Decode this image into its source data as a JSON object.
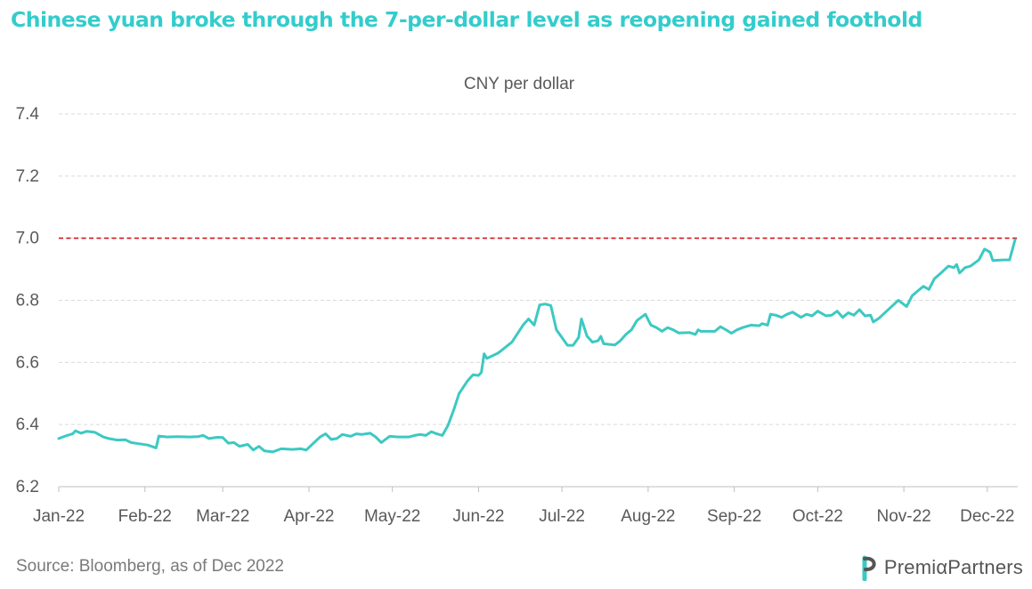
{
  "title": "Chinese yuan broke through the 7-per-dollar level as reopening gained foothold",
  "source": "Source: Bloomberg, as of Dec 2022",
  "brand": {
    "name": "PremiαPartners",
    "icon": "premia-logo-icon"
  },
  "colors": {
    "title": "#33cccc",
    "line": "#3cc9c2",
    "reference": "#d7191c",
    "grid": "#d9d9d9",
    "text": "#595959",
    "source": "#7a7a7a"
  },
  "chart_data": {
    "type": "line",
    "title": "CNY per dollar",
    "xlabel": "",
    "ylabel": "",
    "x_domain": [
      "2022-01-01",
      "2022-12-11"
    ],
    "ylim": [
      6.2,
      7.4
    ],
    "y_ticks": [
      6.2,
      6.4,
      6.6,
      6.8,
      7.0,
      7.2,
      7.4
    ],
    "y_tick_labels": [
      "6.2",
      "6.4",
      "6.6",
      "6.8",
      "7.0",
      "7.2",
      "7.4"
    ],
    "x_ticks": [
      {
        "date": "2022-01-01",
        "label": "Jan-22"
      },
      {
        "date": "2022-02-01",
        "label": "Feb-22"
      },
      {
        "date": "2022-03-01",
        "label": "Mar-22"
      },
      {
        "date": "2022-04-01",
        "label": "Apr-22"
      },
      {
        "date": "2022-05-01",
        "label": "May-22"
      },
      {
        "date": "2022-06-01",
        "label": "Jun-22"
      },
      {
        "date": "2022-07-01",
        "label": "Jul-22"
      },
      {
        "date": "2022-08-01",
        "label": "Aug-22"
      },
      {
        "date": "2022-09-01",
        "label": "Sep-22"
      },
      {
        "date": "2022-10-01",
        "label": "Oct-22"
      },
      {
        "date": "2022-11-01",
        "label": "Nov-22"
      },
      {
        "date": "2022-12-01",
        "label": "Dec-22"
      }
    ],
    "grid": "horizontal-dashed",
    "reference_line": {
      "y": 7.0,
      "style": "dashed",
      "color": "#d7191c"
    },
    "series": [
      {
        "name": "",
        "color": "#3cc9c2",
        "points": [
          [
            "2022-01-01",
            6.355
          ],
          [
            "2022-01-04",
            6.365
          ],
          [
            "2022-01-06",
            6.37
          ],
          [
            "2022-01-07",
            6.38
          ],
          [
            "2022-01-09",
            6.372
          ],
          [
            "2022-01-11",
            6.378
          ],
          [
            "2022-01-14",
            6.375
          ],
          [
            "2022-01-17",
            6.36
          ],
          [
            "2022-01-19",
            6.355
          ],
          [
            "2022-01-22",
            6.35
          ],
          [
            "2022-01-25",
            6.351
          ],
          [
            "2022-01-27",
            6.342
          ],
          [
            "2022-01-30",
            6.338
          ],
          [
            "2022-02-02",
            6.334
          ],
          [
            "2022-02-05",
            6.325
          ],
          [
            "2022-02-06",
            6.363
          ],
          [
            "2022-02-09",
            6.36
          ],
          [
            "2022-02-13",
            6.361
          ],
          [
            "2022-02-17",
            6.36
          ],
          [
            "2022-02-20",
            6.361
          ],
          [
            "2022-02-22",
            6.365
          ],
          [
            "2022-02-24",
            6.355
          ],
          [
            "2022-02-27",
            6.359
          ],
          [
            "2022-03-01",
            6.358
          ],
          [
            "2022-03-03",
            6.34
          ],
          [
            "2022-03-05",
            6.342
          ],
          [
            "2022-03-07",
            6.33
          ],
          [
            "2022-03-10",
            6.336
          ],
          [
            "2022-03-12",
            6.318
          ],
          [
            "2022-03-14",
            6.33
          ],
          [
            "2022-03-16",
            6.315
          ],
          [
            "2022-03-19",
            6.312
          ],
          [
            "2022-03-22",
            6.322
          ],
          [
            "2022-03-26",
            6.32
          ],
          [
            "2022-03-29",
            6.322
          ],
          [
            "2022-03-31",
            6.318
          ],
          [
            "2022-04-02",
            6.335
          ],
          [
            "2022-04-05",
            6.36
          ],
          [
            "2022-04-07",
            6.37
          ],
          [
            "2022-04-09",
            6.352
          ],
          [
            "2022-04-11",
            6.355
          ],
          [
            "2022-04-13",
            6.368
          ],
          [
            "2022-04-16",
            6.362
          ],
          [
            "2022-04-18",
            6.37
          ],
          [
            "2022-04-20",
            6.368
          ],
          [
            "2022-04-23",
            6.372
          ],
          [
            "2022-04-25",
            6.36
          ],
          [
            "2022-04-27",
            6.342
          ],
          [
            "2022-04-30",
            6.362
          ],
          [
            "2022-05-03",
            6.36
          ],
          [
            "2022-05-07",
            6.36
          ],
          [
            "2022-05-09",
            6.365
          ],
          [
            "2022-05-11",
            6.368
          ],
          [
            "2022-05-13",
            6.365
          ],
          [
            "2022-05-15",
            6.377
          ],
          [
            "2022-05-17",
            6.37
          ],
          [
            "2022-05-19",
            6.365
          ],
          [
            "2022-05-21",
            6.397
          ],
          [
            "2022-05-23",
            6.445
          ],
          [
            "2022-05-25",
            6.5
          ],
          [
            "2022-05-28",
            6.54
          ],
          [
            "2022-05-30",
            6.56
          ],
          [
            "2022-06-01",
            6.558
          ],
          [
            "2022-06-02",
            6.568
          ],
          [
            "2022-06-03",
            6.628
          ],
          [
            "2022-06-04",
            6.613
          ],
          [
            "2022-06-08",
            6.63
          ],
          [
            "2022-06-13",
            6.665
          ],
          [
            "2022-06-17",
            6.72
          ],
          [
            "2022-06-19",
            6.74
          ],
          [
            "2022-06-21",
            6.72
          ],
          [
            "2022-06-23",
            6.785
          ],
          [
            "2022-06-25",
            6.788
          ],
          [
            "2022-06-27",
            6.783
          ],
          [
            "2022-06-29",
            6.705
          ],
          [
            "2022-07-01",
            6.68
          ],
          [
            "2022-07-03",
            6.655
          ],
          [
            "2022-07-05",
            6.655
          ],
          [
            "2022-07-07",
            6.68
          ],
          [
            "2022-07-08",
            6.74
          ],
          [
            "2022-07-10",
            6.685
          ],
          [
            "2022-07-12",
            6.665
          ],
          [
            "2022-07-14",
            6.67
          ],
          [
            "2022-07-15",
            6.684
          ],
          [
            "2022-07-16",
            6.66
          ],
          [
            "2022-07-20",
            6.656
          ],
          [
            "2022-07-22",
            6.67
          ],
          [
            "2022-07-24",
            6.69
          ],
          [
            "2022-07-26",
            6.705
          ],
          [
            "2022-07-28",
            6.735
          ],
          [
            "2022-07-31",
            6.755
          ],
          [
            "2022-08-02",
            6.72
          ],
          [
            "2022-08-04",
            6.712
          ],
          [
            "2022-08-06",
            6.7
          ],
          [
            "2022-08-08",
            6.712
          ],
          [
            "2022-08-10",
            6.705
          ],
          [
            "2022-08-12",
            6.695
          ],
          [
            "2022-08-16",
            6.696
          ],
          [
            "2022-08-18",
            6.69
          ],
          [
            "2022-08-19",
            6.705
          ],
          [
            "2022-08-20",
            6.7
          ],
          [
            "2022-08-25",
            6.7
          ],
          [
            "2022-08-27",
            6.715
          ],
          [
            "2022-08-29",
            6.705
          ],
          [
            "2022-08-31",
            6.694
          ],
          [
            "2022-09-02",
            6.705
          ],
          [
            "2022-09-04",
            6.712
          ],
          [
            "2022-09-07",
            6.72
          ],
          [
            "2022-09-10",
            6.718
          ],
          [
            "2022-09-11",
            6.725
          ],
          [
            "2022-09-13",
            6.72
          ],
          [
            "2022-09-14",
            6.755
          ],
          [
            "2022-09-16",
            6.752
          ],
          [
            "2022-09-18",
            6.745
          ],
          [
            "2022-09-20",
            6.755
          ],
          [
            "2022-09-22",
            6.762
          ],
          [
            "2022-09-25",
            6.745
          ],
          [
            "2022-09-27",
            6.755
          ],
          [
            "2022-09-29",
            6.75
          ],
          [
            "2022-10-01",
            6.765
          ],
          [
            "2022-10-04",
            6.75
          ],
          [
            "2022-10-06",
            6.752
          ],
          [
            "2022-10-08",
            6.765
          ],
          [
            "2022-10-10",
            6.745
          ],
          [
            "2022-10-12",
            6.76
          ],
          [
            "2022-10-14",
            6.752
          ],
          [
            "2022-10-16",
            6.77
          ],
          [
            "2022-10-18",
            6.75
          ],
          [
            "2022-10-20",
            6.752
          ],
          [
            "2022-10-21",
            6.73
          ],
          [
            "2022-10-23",
            6.742
          ],
          [
            "2022-10-27",
            6.775
          ],
          [
            "2022-10-30",
            6.8
          ],
          [
            "2022-11-02",
            6.78
          ],
          [
            "2022-11-04",
            6.815
          ],
          [
            "2022-11-06",
            6.83
          ],
          [
            "2022-11-08",
            6.845
          ],
          [
            "2022-11-10",
            6.835
          ],
          [
            "2022-11-12",
            6.87
          ],
          [
            "2022-11-14",
            6.885
          ],
          [
            "2022-11-17",
            6.91
          ],
          [
            "2022-11-19",
            6.905
          ],
          [
            "2022-11-20",
            6.915
          ],
          [
            "2022-11-21",
            6.888
          ],
          [
            "2022-11-23",
            6.905
          ],
          [
            "2022-11-25",
            6.91
          ],
          [
            "2022-11-28",
            6.93
          ],
          [
            "2022-11-30",
            6.965
          ],
          [
            "2022-12-02",
            6.955
          ],
          [
            "2022-12-03",
            6.928
          ],
          [
            "2022-12-07",
            6.93
          ],
          [
            "2022-12-09",
            6.93
          ],
          [
            "2022-12-11",
            6.995
          ]
        ]
      }
    ]
  }
}
